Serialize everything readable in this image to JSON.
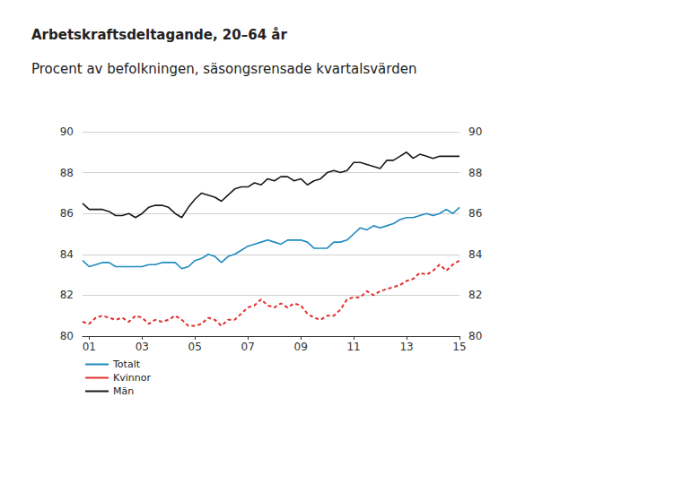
{
  "chart_data": {
    "type": "line",
    "title": "Arbetskraftsdeltagande, 20–64 år",
    "subtitle": "Procent av befolkningen, säsongsrensade kvartalsvärden",
    "categories": [
      null,
      "01",
      null,
      null,
      null,
      null,
      null,
      null,
      null,
      "03",
      null,
      null,
      null,
      null,
      null,
      null,
      null,
      "05",
      null,
      null,
      null,
      null,
      null,
      null,
      null,
      "07",
      null,
      null,
      null,
      null,
      null,
      null,
      null,
      "09",
      null,
      null,
      null,
      null,
      null,
      null,
      null,
      "11",
      null,
      null,
      null,
      null,
      null,
      null,
      null,
      "13",
      null,
      null,
      null,
      null,
      null,
      null,
      null,
      "15"
    ],
    "series": [
      {
        "name": "Totalt",
        "color": "#1f8ac0",
        "line_style": "solid",
        "values": [
          83.7,
          83.4,
          83.5,
          83.6,
          83.6,
          83.4,
          83.4,
          83.4,
          83.4,
          83.4,
          83.5,
          83.5,
          83.6,
          83.6,
          83.6,
          83.3,
          83.4,
          83.7,
          83.8,
          84.0,
          83.9,
          83.6,
          83.9,
          84.0,
          84.2,
          84.4,
          84.5,
          84.6,
          84.7,
          84.6,
          84.5,
          84.7,
          84.7,
          84.7,
          84.6,
          84.3,
          84.3,
          84.3,
          84.6,
          84.6,
          84.7,
          85.0,
          85.3,
          85.2,
          85.4,
          85.3,
          85.4,
          85.5,
          85.7,
          85.8,
          85.8,
          85.9,
          86.0,
          85.9,
          86.0,
          86.2,
          86.0,
          86.3
        ]
      },
      {
        "name": "Kvinnor",
        "color": "#e0302e",
        "line_style": "dashed",
        "values": [
          80.7,
          80.6,
          80.9,
          81.0,
          80.9,
          80.8,
          80.9,
          80.7,
          81.0,
          80.9,
          80.6,
          80.8,
          80.7,
          80.8,
          81.0,
          80.8,
          80.5,
          80.5,
          80.6,
          80.9,
          80.8,
          80.5,
          80.8,
          80.8,
          81.1,
          81.4,
          81.5,
          81.8,
          81.5,
          81.4,
          81.6,
          81.4,
          81.6,
          81.5,
          81.1,
          80.9,
          80.8,
          81.0,
          81.0,
          81.3,
          81.8,
          81.9,
          81.9,
          82.2,
          82.0,
          82.2,
          82.3,
          82.4,
          82.5,
          82.7,
          82.8,
          83.1,
          83.0,
          83.2,
          83.5,
          83.2,
          83.5,
          83.7
        ]
      },
      {
        "name": "Män",
        "color": "#1a1a1a",
        "line_style": "solid",
        "values": [
          86.5,
          86.2,
          86.2,
          86.2,
          86.1,
          85.9,
          85.9,
          86.0,
          85.8,
          86.0,
          86.3,
          86.4,
          86.4,
          86.3,
          86.0,
          85.8,
          86.3,
          86.7,
          87.0,
          86.9,
          86.8,
          86.6,
          86.9,
          87.2,
          87.3,
          87.3,
          87.5,
          87.4,
          87.7,
          87.6,
          87.8,
          87.8,
          87.6,
          87.7,
          87.4,
          87.6,
          87.7,
          88.0,
          88.1,
          88.0,
          88.1,
          88.5,
          88.5,
          88.4,
          88.3,
          88.2,
          88.6,
          88.6,
          88.8,
          89.0,
          88.7,
          88.9,
          88.8,
          88.7,
          88.8,
          88.8,
          88.8,
          88.8
        ]
      }
    ],
    "ylim": [
      80,
      90
    ],
    "yticks": [
      80,
      82,
      84,
      86,
      88,
      90
    ],
    "y2lim": [
      80,
      90
    ],
    "y2ticks": [
      80,
      82,
      84,
      86,
      88,
      90
    ],
    "grid": true,
    "legend": "lower left"
  }
}
